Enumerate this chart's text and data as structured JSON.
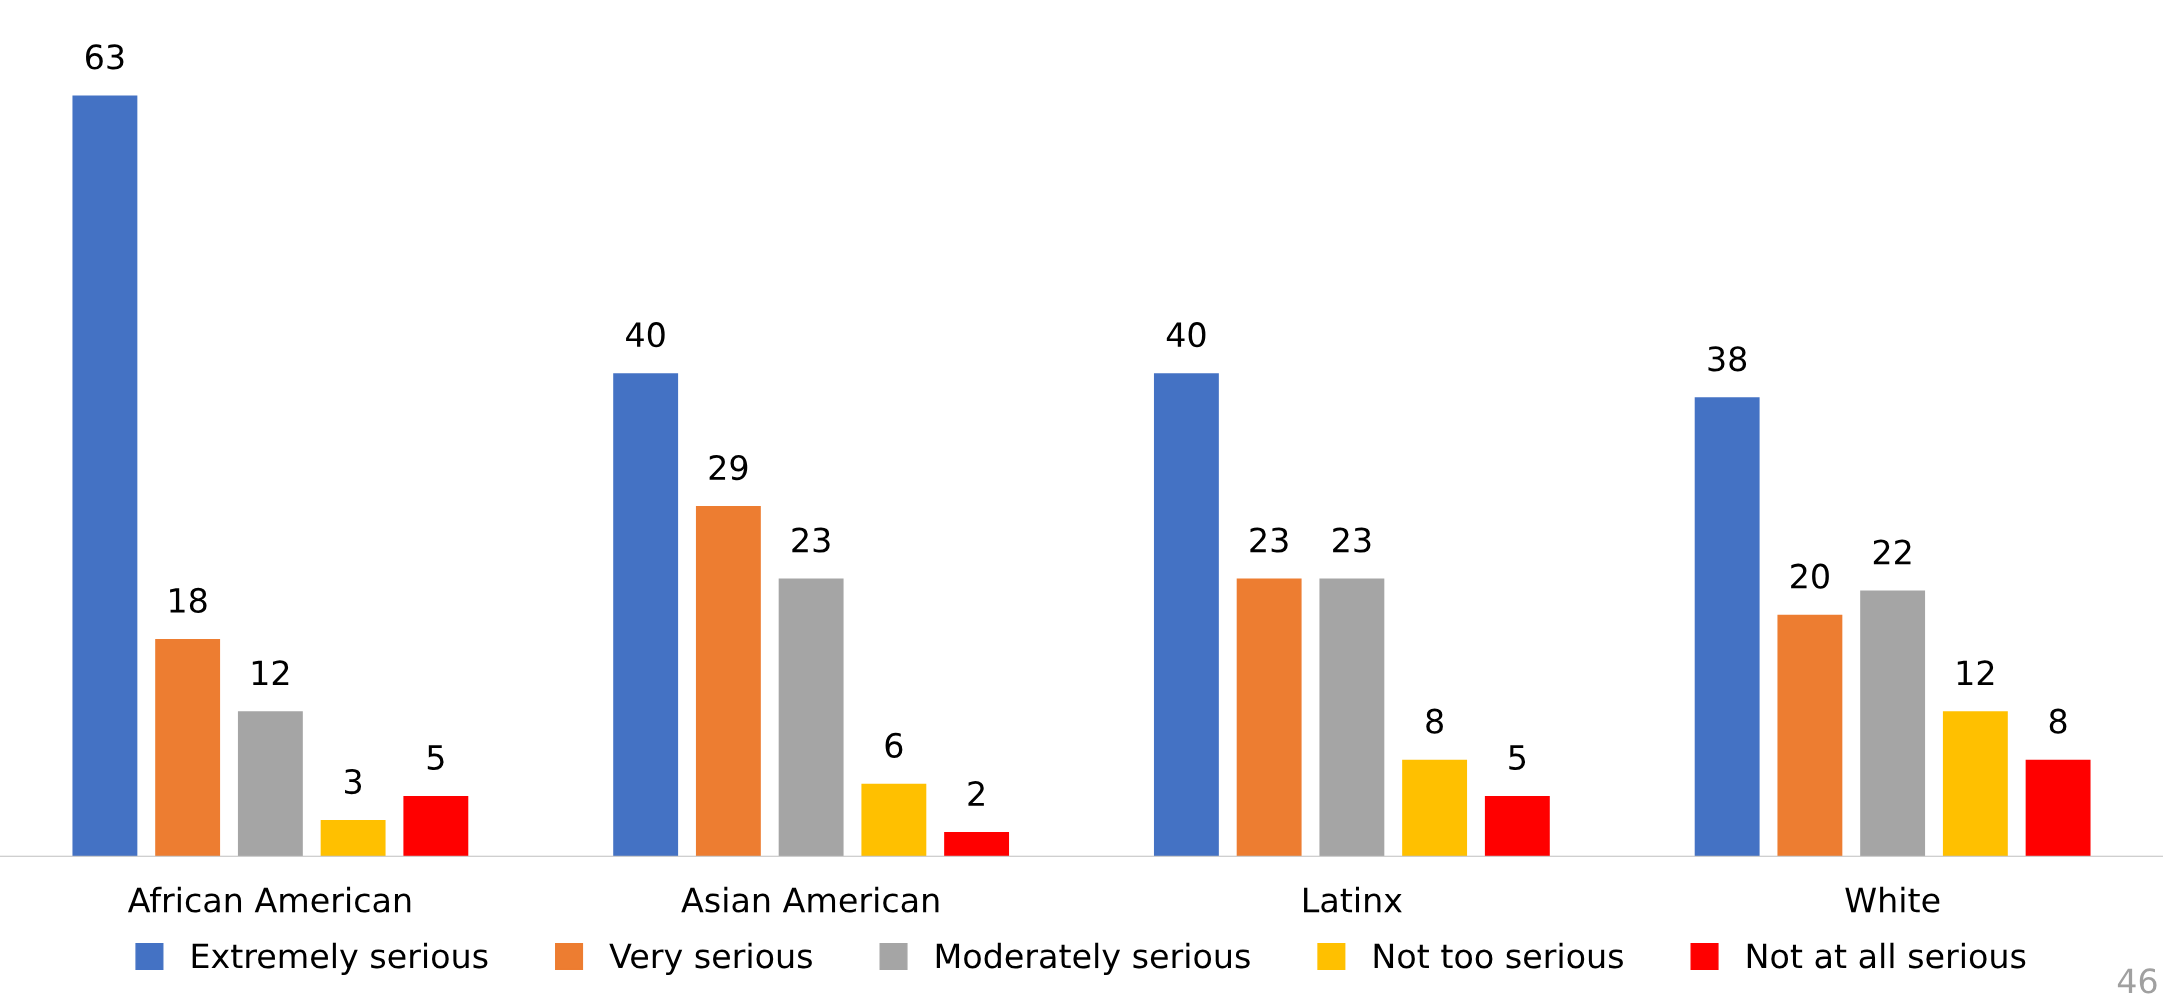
{
  "chart_data": {
    "type": "bar",
    "categories": [
      "African American",
      "Asian American",
      "Latinx",
      "White"
    ],
    "series": [
      {
        "name": "Extremely serious",
        "color": "#4472c4",
        "values": [
          63,
          40,
          40,
          38
        ]
      },
      {
        "name": "Very serious",
        "color": "#ed7d31",
        "values": [
          18,
          29,
          23,
          20
        ]
      },
      {
        "name": "Moderately serious",
        "color": "#a5a5a5",
        "values": [
          12,
          23,
          23,
          22
        ]
      },
      {
        "name": "Not too serious",
        "color": "#ffc000",
        "values": [
          3,
          6,
          8,
          12
        ]
      },
      {
        "name": "Not at all serious",
        "color": "#ff0000",
        "values": [
          5,
          2,
          5,
          8
        ]
      }
    ],
    "data_labels": true,
    "legend": "bottom",
    "grid": false,
    "tick_labels": "x",
    "annotations": [
      "46"
    ]
  }
}
